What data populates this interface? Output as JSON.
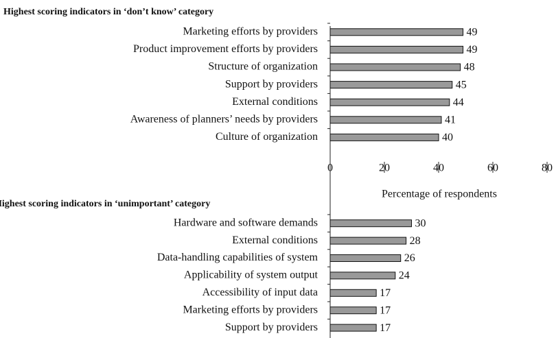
{
  "chart_data": [
    {
      "type": "bar",
      "orientation": "horizontal",
      "title": "Highest scoring indicators in ‘don’t know’ category",
      "categories": [
        "Marketing efforts by providers",
        "Product improvement efforts by providers",
        "Structure of organization",
        "Support by providers",
        "External conditions",
        "Awareness of planners’ needs by providers",
        "Culture of organization"
      ],
      "values": [
        49,
        49,
        48,
        45,
        44,
        41,
        40
      ],
      "color": "#999999",
      "xlim": [
        0,
        80
      ],
      "xticks": [
        0,
        20,
        40,
        60,
        80
      ],
      "xlabel": "Percentage of respondents"
    },
    {
      "type": "bar",
      "orientation": "horizontal",
      "title": "Highest scoring indicators in ‘unimportant’ category",
      "categories": [
        "Hardware and software demands",
        "External conditions",
        "Data-handling capabilities of system",
        "Applicability of system output",
        "Accessibility of input data",
        "Marketing efforts by providers",
        "Support by providers"
      ],
      "values": [
        30,
        28,
        26,
        24,
        17,
        17,
        17
      ],
      "color": "#999999",
      "xlim": [
        0,
        80
      ]
    }
  ]
}
